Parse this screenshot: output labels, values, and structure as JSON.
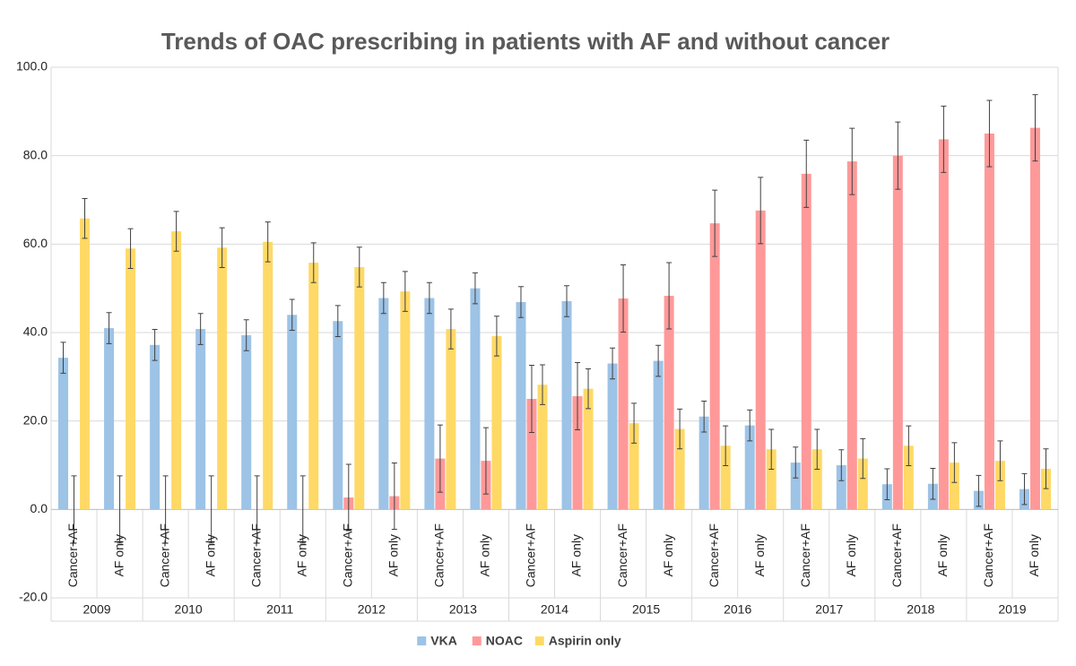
{
  "chart_data": {
    "type": "bar",
    "title": "Trends of OAC prescribing in patients with AF and without cancer",
    "categories": [
      "Cancer+AF",
      "AF only",
      "Cancer+AF",
      "AF only",
      "Cancer+AF",
      "AF only",
      "Cancer+AF",
      "AF only",
      "Cancer+AF",
      "AF only",
      "Cancer+AF",
      "AF only",
      "Cancer+AF",
      "AF only",
      "Cancer+AF",
      "AF only",
      "Cancer+AF",
      "AF only",
      "Cancer+AF",
      "AF only",
      "Cancer+AF",
      "AF only"
    ],
    "groups": [
      "2009",
      "2010",
      "2011",
      "2012",
      "2013",
      "2014",
      "2015",
      "2016",
      "2017",
      "2018",
      "2019"
    ],
    "series": [
      {
        "name": "VKA",
        "color": "#9dc3e6",
        "values": [
          34.3,
          41,
          37.2,
          40.8,
          39.4,
          44,
          42.6,
          47.8,
          47.8,
          50,
          46.9,
          47.1,
          33,
          33.6,
          21,
          19,
          10.6,
          10,
          5.7,
          5.8,
          4.2,
          4.6
        ],
        "errors": [
          3.5,
          3.5,
          3.5,
          3.5,
          3.5,
          3.5,
          3.5,
          3.5,
          3.5,
          3.5,
          3.5,
          3.5,
          3.5,
          3.5,
          3.5,
          3.5,
          3.5,
          3.5,
          3.5,
          3.5,
          3.5,
          3.5
        ]
      },
      {
        "name": "NOAC",
        "color": "#ff9999",
        "values": [
          0,
          0,
          0,
          0,
          0,
          0,
          2.7,
          3,
          11.5,
          11,
          25,
          25.6,
          47.7,
          48.3,
          64.7,
          67.6,
          75.9,
          78.7,
          80,
          83.7,
          85,
          86.3
        ],
        "errors": [
          7.6,
          7.6,
          7.6,
          7.6,
          7.6,
          7.6,
          7.5,
          7.5,
          7.6,
          7.5,
          7.6,
          7.6,
          7.6,
          7.5,
          7.5,
          7.5,
          7.6,
          7.5,
          7.6,
          7.5,
          7.5,
          7.5
        ]
      },
      {
        "name": "Aspirin only",
        "color": "#ffd966",
        "values": [
          65.8,
          59,
          62.9,
          59.2,
          60.5,
          55.8,
          54.8,
          49.3,
          40.8,
          39.2,
          28.2,
          27.3,
          19.5,
          18.2,
          14.4,
          13.6,
          13.6,
          11.5,
          14.4,
          10.6,
          11,
          9.2
        ],
        "errors": [
          4.5,
          4.5,
          4.5,
          4.5,
          4.5,
          4.5,
          4.5,
          4.5,
          4.5,
          4.5,
          4.5,
          4.5,
          4.5,
          4.5,
          4.5,
          4.5,
          4.5,
          4.5,
          4.5,
          4.5,
          4.5,
          4.5
        ]
      }
    ],
    "ylim": [
      -20,
      100
    ],
    "yticks": [
      {
        "value": -20,
        "label": "-20.0"
      },
      {
        "value": 0,
        "label": "0.0"
      },
      {
        "value": 20,
        "label": "20.0"
      },
      {
        "value": 40,
        "label": "40.0"
      },
      {
        "value": 60,
        "label": "60.0"
      },
      {
        "value": 80,
        "label": "80.0"
      },
      {
        "value": 100,
        "label": "100.0"
      }
    ],
    "grid": true,
    "legend": "bottom"
  }
}
